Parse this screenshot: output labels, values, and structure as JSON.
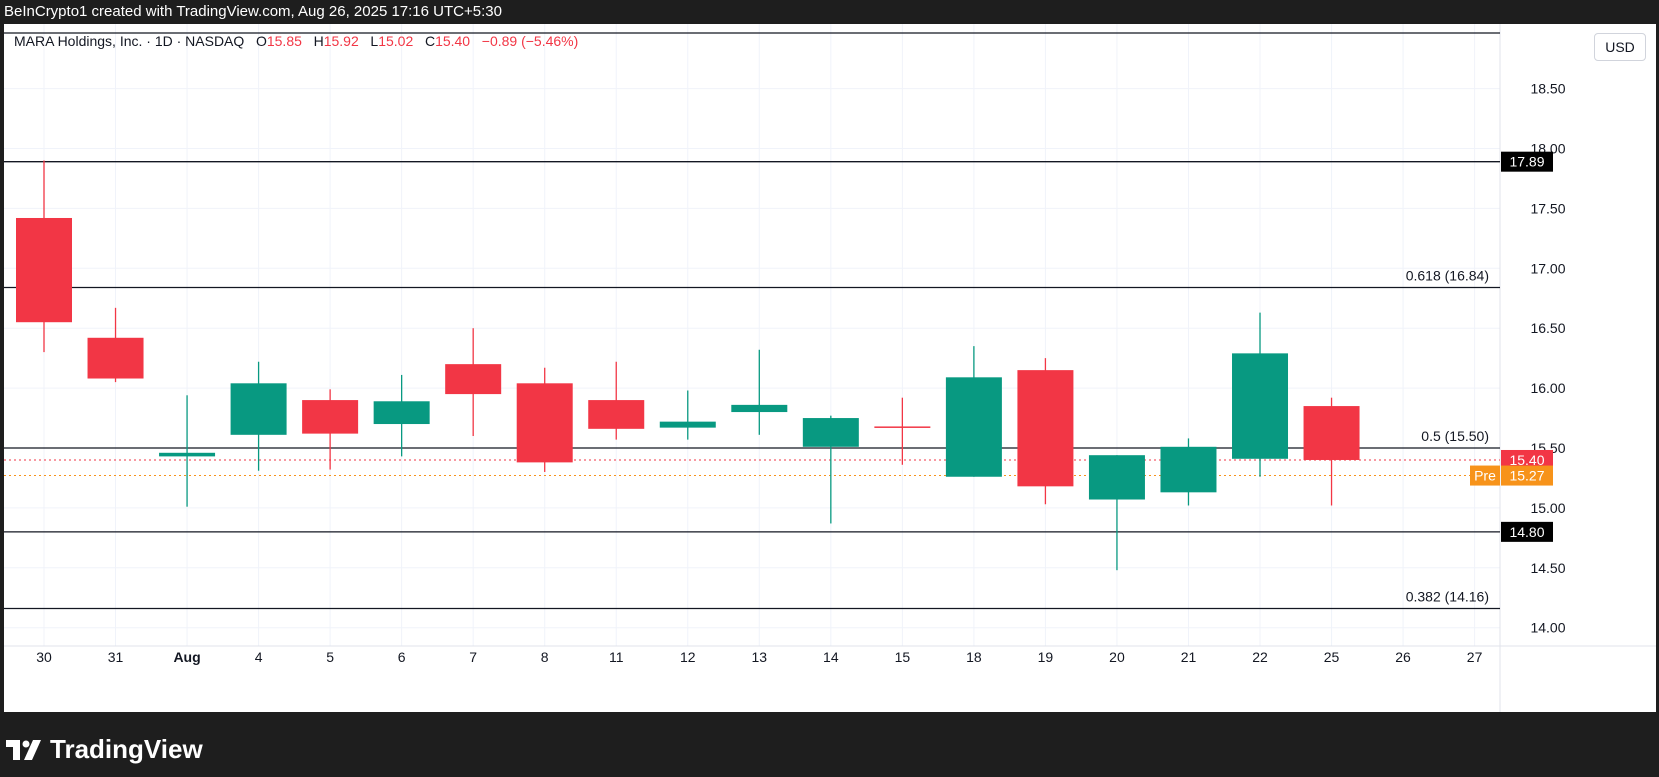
{
  "header": {
    "credit": "BeInCrypto1 created with TradingView.com, Aug 26, 2025 17:16 UTC+5:30"
  },
  "legend": {
    "symbol": "MARA Holdings, Inc. · 1D · NASDAQ",
    "o_label": "O",
    "o_value": "15.85",
    "h_label": "H",
    "h_value": "15.92",
    "l_label": "L",
    "l_value": "15.02",
    "c_label": "C",
    "c_value": "15.40",
    "change": "−0.89 (−5.46%)"
  },
  "currency_button": "USD",
  "brand": {
    "name": "TradingView"
  },
  "colors": {
    "up": "#089981",
    "down": "#f23645",
    "pre": "#f7931a",
    "line": "#131722"
  },
  "chart_data": {
    "type": "candlestick",
    "x_labels": [
      "30",
      "31",
      "Aug",
      "4",
      "5",
      "6",
      "7",
      "8",
      "11",
      "12",
      "13",
      "14",
      "15",
      "18",
      "19",
      "20",
      "21",
      "22",
      "25",
      "26",
      "27"
    ],
    "candles": [
      {
        "date": "30",
        "open": 17.42,
        "high": 17.9,
        "low": 16.3,
        "close": 16.55
      },
      {
        "date": "31",
        "open": 16.42,
        "high": 16.67,
        "low": 16.05,
        "close": 16.08
      },
      {
        "date": "Aug",
        "open": 15.43,
        "high": 15.94,
        "low": 15.01,
        "close": 15.46
      },
      {
        "date": "4",
        "open": 15.61,
        "high": 16.22,
        "low": 15.31,
        "close": 16.04
      },
      {
        "date": "5",
        "open": 15.9,
        "high": 15.99,
        "low": 15.32,
        "close": 15.62
      },
      {
        "date": "6",
        "open": 15.7,
        "high": 16.11,
        "low": 15.43,
        "close": 15.89
      },
      {
        "date": "7",
        "open": 16.2,
        "high": 16.5,
        "low": 15.6,
        "close": 15.95
      },
      {
        "date": "8",
        "open": 16.04,
        "high": 16.17,
        "low": 15.3,
        "close": 15.38
      },
      {
        "date": "11",
        "open": 15.9,
        "high": 16.22,
        "low": 15.57,
        "close": 15.66
      },
      {
        "date": "12",
        "open": 15.67,
        "high": 15.98,
        "low": 15.57,
        "close": 15.72
      },
      {
        "date": "13",
        "open": 15.8,
        "high": 16.32,
        "low": 15.61,
        "close": 15.86
      },
      {
        "date": "14",
        "open": 15.51,
        "high": 15.77,
        "low": 14.87,
        "close": 15.75
      },
      {
        "date": "15",
        "open": 15.68,
        "high": 15.92,
        "low": 15.36,
        "close": 15.67
      },
      {
        "date": "18",
        "open": 15.26,
        "high": 16.35,
        "low": 15.26,
        "close": 16.09
      },
      {
        "date": "19",
        "open": 16.15,
        "high": 16.25,
        "low": 15.03,
        "close": 15.18
      },
      {
        "date": "20",
        "open": 15.07,
        "high": 15.44,
        "low": 14.48,
        "close": 15.44
      },
      {
        "date": "21",
        "open": 15.13,
        "high": 15.58,
        "low": 15.02,
        "close": 15.51
      },
      {
        "date": "22",
        "open": 15.41,
        "high": 16.63,
        "low": 15.26,
        "close": 16.29
      },
      {
        "date": "25",
        "open": 15.85,
        "high": 15.92,
        "low": 15.02,
        "close": 15.4
      }
    ],
    "y_ticks": [
      "14.00",
      "14.50",
      "15.00",
      "15.50",
      "16.00",
      "16.50",
      "17.00",
      "17.50",
      "18.00",
      "18.50"
    ],
    "y_range": [
      13.8,
      18.7
    ],
    "levels": [
      {
        "price": 17.89,
        "label": "17.89",
        "kind": "line-badge"
      },
      {
        "price": 16.84,
        "label": "0.618 (16.84)",
        "kind": "line-text"
      },
      {
        "price": 15.5,
        "label": "0.5 (15.50)",
        "kind": "line-text"
      },
      {
        "price": 14.8,
        "label": "14.80",
        "kind": "line-badge"
      },
      {
        "price": 14.16,
        "label": "0.382 (14.16)",
        "kind": "line-text"
      }
    ],
    "last_price": {
      "price": 15.4,
      "label": "15.40"
    },
    "pre_market": {
      "price": 15.27,
      "label": "15.27",
      "tag": "Pre"
    }
  }
}
